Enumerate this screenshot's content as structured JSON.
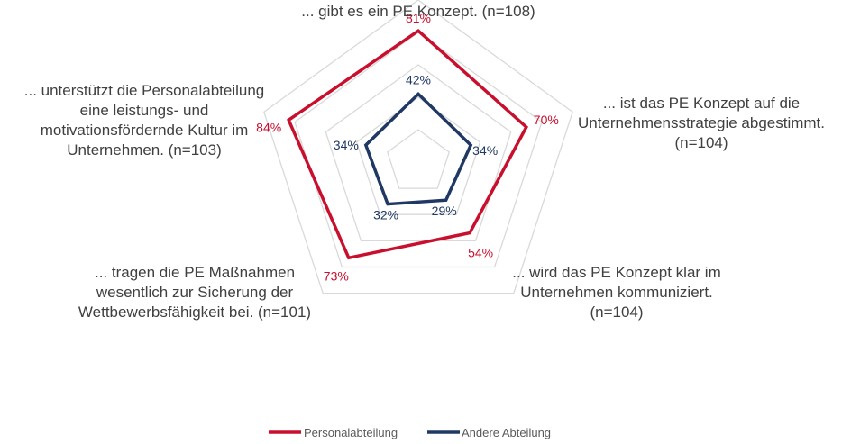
{
  "chart_data": {
    "type": "radar",
    "categories": [
      [
        "... gibt es ein PE Konzept. (n=108)"
      ],
      [
        "... ist das PE Konzept auf die",
        "Unternehmensstrategie abgestimmt.",
        "(n=104)"
      ],
      [
        "... wird das PE Konzept klar im",
        "Unternehmen kommuniziert.",
        "(n=104)"
      ],
      [
        "... tragen die PE Maßnahmen",
        "wesentlich zur Sicherung der",
        "Wettbewerbsfähigkeit bei. (n=101)"
      ],
      [
        "... unterstützt die Personalabteilung",
        "eine leistungs- und",
        "motivationsfördernde Kultur im",
        "Unternehmen. (n=103)"
      ]
    ],
    "series": [
      {
        "name": "Personalabteilung",
        "color": "#c8102e",
        "values": [
          81,
          70,
          54,
          73,
          84
        ],
        "labels": [
          "81%",
          "70%",
          "54%",
          "73%",
          "84%"
        ]
      },
      {
        "name": "Andere Abteilung",
        "color": "#1f3864",
        "values": [
          42,
          34,
          29,
          32,
          34
        ],
        "labels": [
          "42%",
          "34%",
          "29%",
          "32%",
          "34%"
        ]
      }
    ],
    "rlim": [
      0,
      100
    ],
    "grid_steps": [
      20,
      40,
      60,
      80,
      100
    ],
    "grid_color": "#d9d9d9",
    "legend_position": "bottom"
  }
}
